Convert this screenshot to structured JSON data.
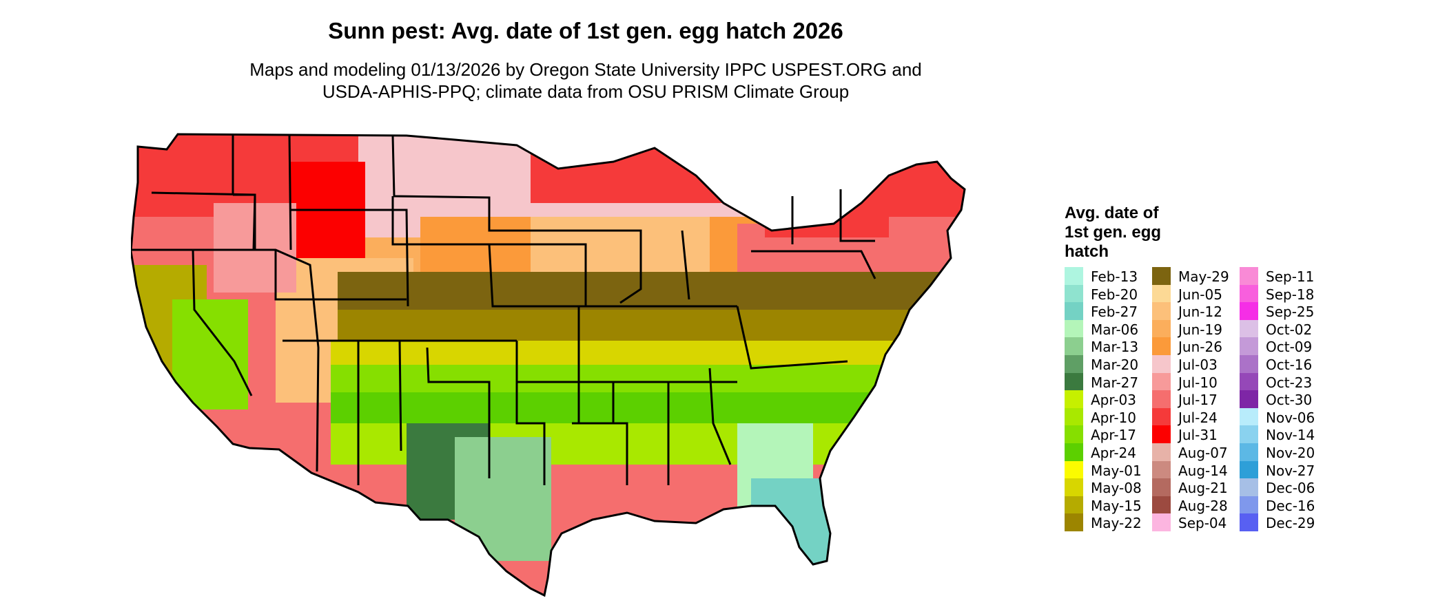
{
  "title": "Sunn pest: Avg. date of 1st gen. egg hatch 2026",
  "subtitle": {
    "line1": "Maps and modeling 01/13/2026 by Oregon State University IPPC USPEST.ORG and",
    "line2": "USDA-APHIS-PPQ; climate data from OSU PRISM Climate Group"
  },
  "legend": {
    "title_lines": [
      "Avg. date of",
      "1st gen. egg",
      "hatch"
    ],
    "columns": [
      [
        {
          "label": "Feb-13",
          "color": "#aef5e0"
        },
        {
          "label": "Feb-20",
          "color": "#8fe3cf"
        },
        {
          "label": "Feb-27",
          "color": "#74d2c4"
        },
        {
          "label": "Mar-06",
          "color": "#b4f5b9"
        },
        {
          "label": "Mar-13",
          "color": "#8ccf8f"
        },
        {
          "label": "Mar-20",
          "color": "#5f9f65"
        },
        {
          "label": "Mar-27",
          "color": "#3b7a3f"
        },
        {
          "label": "Apr-03",
          "color": "#c6f000"
        },
        {
          "label": "Apr-10",
          "color": "#a9e800"
        },
        {
          "label": "Apr-17",
          "color": "#86df00"
        },
        {
          "label": "Apr-24",
          "color": "#5cd000"
        },
        {
          "label": "May-01",
          "color": "#fbfb00"
        },
        {
          "label": "May-08",
          "color": "#d8d600"
        },
        {
          "label": "May-15",
          "color": "#b5ab00"
        },
        {
          "label": "May-22",
          "color": "#9c8500"
        }
      ],
      [
        {
          "label": "May-29",
          "color": "#7c6410"
        },
        {
          "label": "Jun-05",
          "color": "#fcd995"
        },
        {
          "label": "Jun-12",
          "color": "#fcc07a"
        },
        {
          "label": "Jun-19",
          "color": "#fbae5c"
        },
        {
          "label": "Jun-26",
          "color": "#fb9a3a"
        },
        {
          "label": "Jul-03",
          "color": "#f6c6cb"
        },
        {
          "label": "Jul-10",
          "color": "#f79a9a"
        },
        {
          "label": "Jul-17",
          "color": "#f56e6e"
        },
        {
          "label": "Jul-24",
          "color": "#f53a3a"
        },
        {
          "label": "Jul-31",
          "color": "#fc0000"
        },
        {
          "label": "Aug-07",
          "color": "#e7b2a8"
        },
        {
          "label": "Aug-14",
          "color": "#cc8a80"
        },
        {
          "label": "Aug-21",
          "color": "#b46a60"
        },
        {
          "label": "Aug-28",
          "color": "#9c4a40"
        },
        {
          "label": "Sep-04",
          "color": "#fcb5e0"
        }
      ],
      [
        {
          "label": "Sep-11",
          "color": "#f98ad6"
        },
        {
          "label": "Sep-18",
          "color": "#f85fdd"
        },
        {
          "label": "Sep-25",
          "color": "#f52ee6"
        },
        {
          "label": "Oct-02",
          "color": "#dcc0e6"
        },
        {
          "label": "Oct-09",
          "color": "#c49ad8"
        },
        {
          "label": "Oct-16",
          "color": "#ab72c8"
        },
        {
          "label": "Oct-23",
          "color": "#9548b8"
        },
        {
          "label": "Oct-30",
          "color": "#7e26a6"
        },
        {
          "label": "Nov-06",
          "color": "#b8ecfb"
        },
        {
          "label": "Nov-14",
          "color": "#8ad2ef"
        },
        {
          "label": "Nov-20",
          "color": "#5cb8e5"
        },
        {
          "label": "Nov-27",
          "color": "#2e9fd8"
        },
        {
          "label": "Dec-06",
          "color": "#a6bfe6"
        },
        {
          "label": "Dec-16",
          "color": "#7f98ec"
        },
        {
          "label": "Dec-29",
          "color": "#5860f2"
        }
      ]
    ]
  }
}
